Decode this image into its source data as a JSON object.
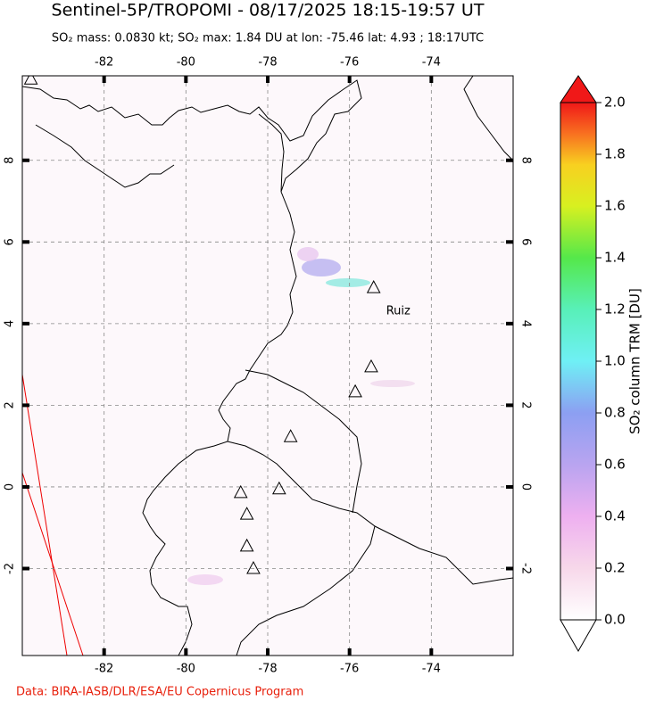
{
  "header": {
    "title": "Sentinel-5P/TROPOMI - 08/17/2025 18:15-19:57 UT",
    "subtitle": "SO₂ mass: 0.0830 kt; SO₂ max: 1.84 DU at lon: -75.46 lat: 4.93 ; 18:17UTC"
  },
  "map": {
    "lonlim": [
      -84.0,
      -72.0
    ],
    "latlim": [
      -4.13,
      10.07
    ],
    "lonticks": [
      -82,
      -80,
      -78,
      -76,
      -74
    ],
    "latticks": [
      8,
      6,
      4,
      2,
      0,
      -2
    ],
    "volcanoes": [
      {
        "lon": -75.41,
        "lat": 4.89,
        "name": "Ruiz"
      },
      {
        "lon": -75.47,
        "lat": 2.95
      },
      {
        "lon": -75.86,
        "lat": 2.34
      },
      {
        "lon": -77.44,
        "lat": 1.24
      },
      {
        "lon": -77.72,
        "lat": -0.04
      },
      {
        "lon": -78.66,
        "lat": -0.13
      },
      {
        "lon": -78.51,
        "lat": -0.66
      },
      {
        "lon": -78.51,
        "lat": -1.44
      },
      {
        "lon": -78.35,
        "lat": -1.99
      },
      {
        "lon": -83.79,
        "lat": 10.0
      }
    ]
  },
  "colorbar": {
    "label": "SO₂ column TRM [DU]",
    "lim": [
      0,
      2
    ],
    "ticks": [
      {
        "value": 0,
        "label": "0.0"
      },
      {
        "value": 0.2,
        "label": "0.2"
      },
      {
        "value": 0.4,
        "label": "0.4"
      },
      {
        "value": 0.6,
        "label": "0.6"
      },
      {
        "value": 0.8,
        "label": "0.8"
      },
      {
        "value": 1,
        "label": "1.0"
      },
      {
        "value": 1.2,
        "label": "1.2"
      },
      {
        "value": 1.4,
        "label": "1.4"
      },
      {
        "value": 1.6,
        "label": "1.6"
      },
      {
        "value": 1.8,
        "label": "1.8"
      },
      {
        "value": 2,
        "label": "2.0"
      }
    ]
  },
  "footer": {
    "credit": "Data: BIRA-IASB/DLR/ESA/EU Copernicus Program"
  }
}
